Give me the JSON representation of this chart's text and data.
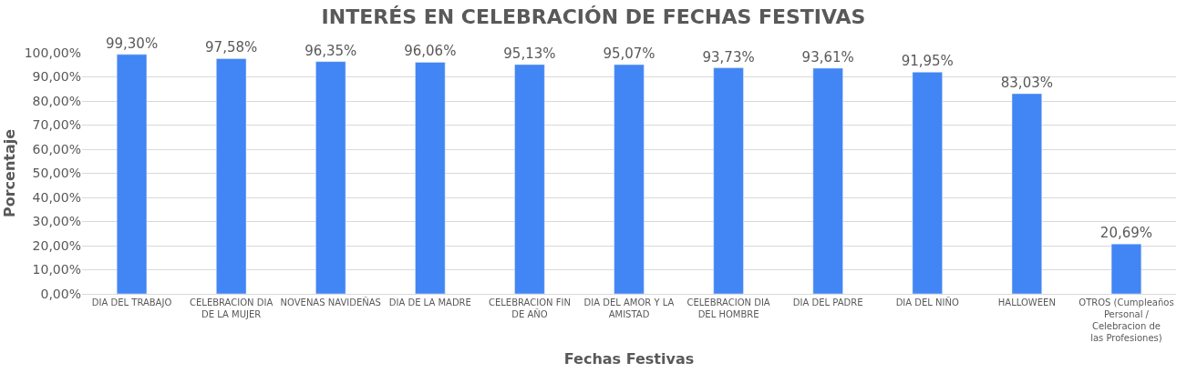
{
  "chart_data": {
    "type": "bar",
    "title": "INTERÉS EN CELEBRACIÓN DE FECHAS FESTIVAS",
    "xlabel": "Fechas Festivas",
    "ylabel": "Porcentaje",
    "categories": [
      "DIA DEL TRABAJO",
      "CELEBRACION DIA DE LA MUJER",
      "NOVENAS NAVIDEÑAS",
      "DIA DE LA MADRE",
      "CELEBRACION FIN DE AÑO",
      "DIA DEL AMOR Y LA AMISTAD",
      "CELEBRACION DIA DEL HOMBRE",
      "DIA DEL PADRE",
      "DIA DEL NIÑO",
      "HALLOWEEN",
      "OTROS (Cumpleaños Personal / Celebracion de las Profesiones)"
    ],
    "values": [
      99.3,
      97.58,
      96.35,
      96.06,
      95.13,
      95.07,
      93.73,
      93.61,
      91.95,
      83.03,
      20.69
    ],
    "value_labels": [
      "99,30%",
      "97,58%",
      "96,35%",
      "96,06%",
      "95,13%",
      "95,07%",
      "93,73%",
      "93,61%",
      "91,95%",
      "83,03%",
      "20,69%"
    ],
    "color": "#4285f4",
    "ylim": [
      0,
      100
    ],
    "yticks": [
      {
        "value": 0,
        "label": "0,00%"
      },
      {
        "value": 10,
        "label": "10,00%"
      },
      {
        "value": 20,
        "label": "20,00%"
      },
      {
        "value": 30,
        "label": "30,00%"
      },
      {
        "value": 40,
        "label": "40,00%"
      },
      {
        "value": 50,
        "label": "50,00%"
      },
      {
        "value": 60,
        "label": "60,00%"
      },
      {
        "value": 70,
        "label": "70,00%"
      },
      {
        "value": 80,
        "label": "80,00%"
      },
      {
        "value": 90,
        "label": "90,00%"
      },
      {
        "value": 100,
        "label": "100,00%"
      }
    ],
    "grid": "y"
  }
}
